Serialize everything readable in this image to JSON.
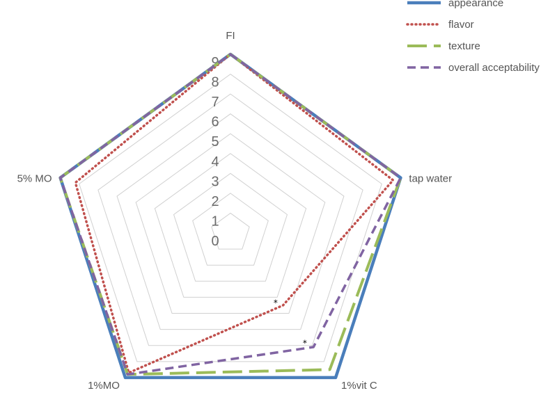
{
  "chart_data": {
    "type": "radar",
    "categories": [
      "FI",
      "tap water",
      "1%vit C",
      "1%MO",
      "5% MO"
    ],
    "rlim": [
      0,
      9
    ],
    "ticks": [
      0,
      1,
      2,
      3,
      4,
      5,
      6,
      7,
      8,
      9
    ],
    "grid": true,
    "legend_position": "top-right",
    "series": [
      {
        "name": "appearance",
        "color": "#4a7ebb",
        "dash": "solid",
        "values": [
          9,
          9,
          9,
          9,
          9
        ]
      },
      {
        "name": "flavor",
        "color": "#c0504d",
        "dash": "dotted",
        "values": [
          9,
          8.6,
          4.5,
          8.7,
          8.2
        ]
      },
      {
        "name": "texture",
        "color": "#9bbb59",
        "dash": "longdash",
        "values": [
          9,
          9,
          8.5,
          8.8,
          9
        ]
      },
      {
        "name": "overall acceptability",
        "color": "#8064a2",
        "dash": "dash",
        "values": [
          9,
          9,
          7.1,
          8.8,
          9
        ]
      }
    ],
    "annotations": [
      {
        "text": "*",
        "category": "1%vit C",
        "value": 4.7
      },
      {
        "text": "*",
        "category": "1%vit C",
        "value": 7.2
      }
    ]
  }
}
